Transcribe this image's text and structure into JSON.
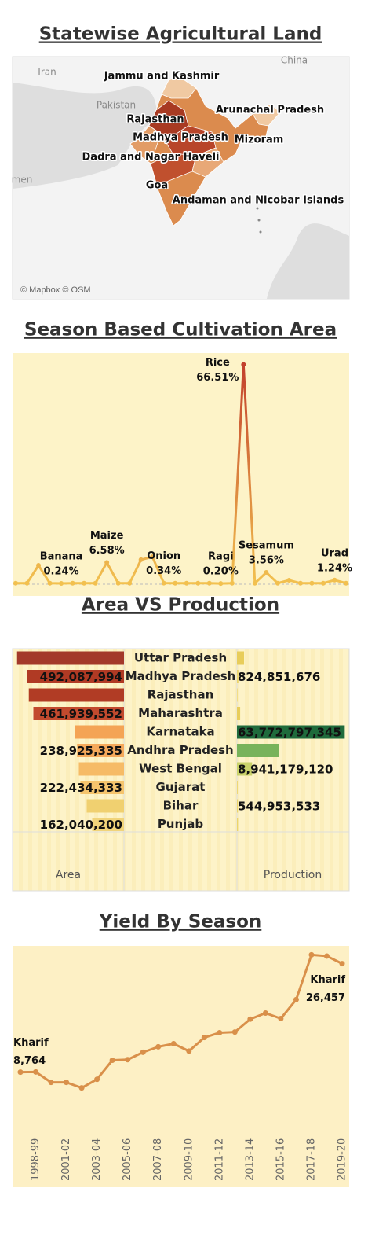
{
  "chart_data": [
    {
      "type": "map",
      "title": "Statewise Agricultural Land",
      "labels": [
        "Jammu and Kashmir",
        "Arunachal Pradesh",
        "Rajasthan",
        "Madhya Pradesh",
        "Mizoram",
        "Dadra and Nagar Haveli",
        "Goa",
        "Andaman and Nicobar Islands"
      ],
      "place_labels": [
        "Iran",
        "Pakistan",
        "China",
        "men"
      ],
      "attribution": "© Mapbox © OSM"
    },
    {
      "type": "line",
      "title": "Season Based Cultivation Area",
      "categories": [
        null,
        null,
        null,
        null,
        "Banana",
        null,
        null,
        null,
        "Maize",
        null,
        null,
        null,
        null,
        "Onion",
        null,
        null,
        null,
        null,
        "Ragi",
        null,
        "Rice",
        null,
        "Sesamum",
        null,
        null,
        null,
        null,
        null,
        "Urad",
        null
      ],
      "values": [
        0.3,
        0.3,
        5.7,
        0.3,
        0.24,
        0.3,
        0.3,
        0.3,
        6.58,
        0.3,
        0.3,
        7.4,
        8.3,
        0.34,
        0.3,
        0.3,
        0.3,
        0.3,
        0.2,
        0.3,
        66.51,
        0.3,
        3.56,
        0.3,
        1.2,
        0.3,
        0.3,
        0.3,
        1.24,
        0.3
      ],
      "value_labels": [
        null,
        null,
        null,
        null,
        "0.24%",
        null,
        null,
        null,
        "6.58%",
        null,
        null,
        null,
        null,
        "0.34%",
        null,
        null,
        null,
        null,
        "0.20%",
        null,
        "66.51%",
        null,
        "3.56%",
        null,
        null,
        null,
        null,
        null,
        "1.24%",
        null
      ],
      "color": "#f2c14f",
      "color_max": "#c0392b",
      "ylim": [
        0,
        70
      ]
    },
    {
      "type": "bar",
      "orientation": "horizontal",
      "title": "Area VS Production",
      "categories": [
        "Uttar Pradesh",
        "Madhya Pradesh",
        "Rajasthan",
        "Maharashtra",
        "Karnataka",
        "Andhra Pradesh",
        "West Bengal",
        "Gujarat",
        "Bihar",
        "Punjab"
      ],
      "series": [
        {
          "name": "Area",
          "xlim": [
            0,
            600000000
          ],
          "colors": [
            "#a3392a",
            "#b03a24",
            "#b13c25",
            "#c24a2e",
            "#f4a455",
            "#f5a95b",
            "#f6bb66",
            "#f5c46d",
            "#f0d070",
            "#f1d47a"
          ],
          "values": [
            545000000,
            492087994,
            485000000,
            461939552,
            250000000,
            238925335,
            230000000,
            222434333,
            190000000,
            162040200
          ],
          "value_labels": [
            null,
            "492,087,994",
            null,
            "461,939,552",
            null,
            "238,925,335",
            null,
            "222,434,333",
            null,
            "162,040,200"
          ]
        },
        {
          "name": "Production",
          "xlim": [
            0,
            65000000000
          ],
          "colors": [
            "#e8cd5a",
            "#ecd56a",
            "#ecd56a",
            "#e8cd5a",
            "#1f6b3c",
            "#78b35b",
            "#c9d26a",
            "#ecd56a",
            "#ecd56a",
            "#ecd56a"
          ],
          "values": [
            4200000000,
            824851676,
            300000000,
            1900000000,
            63772797345,
            25000000000,
            8941179120,
            400000000,
            544953533,
            600000000
          ],
          "value_labels": [
            null,
            "824,851,676",
            null,
            null,
            "63,772,797,345",
            null,
            "8,941,179,120",
            null,
            "544,953,533",
            null
          ]
        }
      ]
    },
    {
      "type": "line",
      "title": "Yield By Season",
      "categories": [
        null,
        "1998-99",
        null,
        "2001-02",
        null,
        "2003-04",
        null,
        "2005-06",
        null,
        "2007-08",
        null,
        "2009-10",
        null,
        "2011-12",
        null,
        "2013-14",
        null,
        "2015-16",
        null,
        "2017-18",
        null,
        "2019-20"
      ],
      "series": [
        {
          "name": "Kharif",
          "color": "#d9904a",
          "values": [
            8764,
            8800,
            7100,
            7100,
            6200,
            7600,
            10700,
            10800,
            12000,
            12900,
            13400,
            12200,
            14400,
            15200,
            15300,
            17400,
            18400,
            17500,
            20600,
            27900,
            27700,
            26457
          ],
          "value_labels": [
            "8,764",
            null,
            null,
            null,
            null,
            null,
            null,
            null,
            null,
            null,
            null,
            null,
            null,
            null,
            null,
            null,
            null,
            null,
            null,
            null,
            null,
            "26,457"
          ]
        }
      ],
      "ylim": [
        0,
        30000
      ]
    }
  ]
}
